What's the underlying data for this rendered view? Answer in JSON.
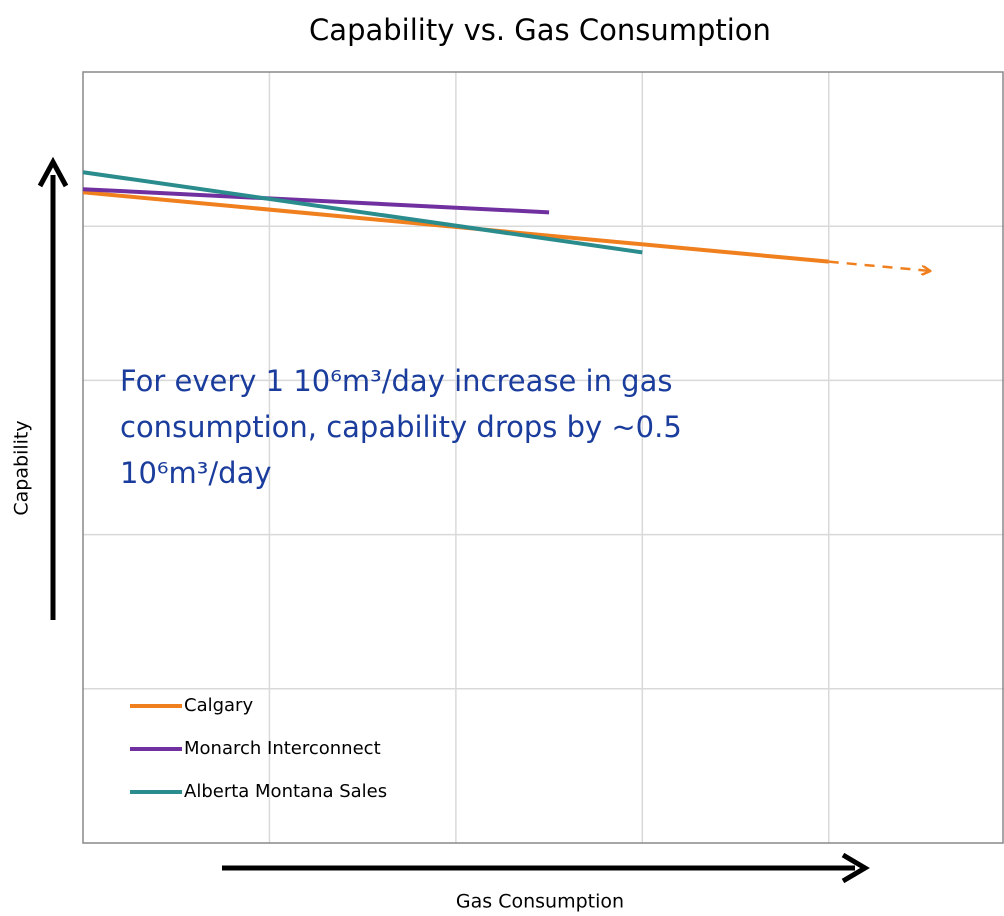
{
  "chart_data": {
    "type": "line",
    "title": "Capability vs. Gas Consumption",
    "x_label": "Gas Consumption",
    "y_label": "Capability",
    "annotation": "For every 1 10⁶m³/day increase in gas consumption, capability drops by ~0.5 10⁶m³/day",
    "annotation_color": "#1a3c9c",
    "xlim": [
      0,
      4.94
    ],
    "ylim": [
      0,
      5
    ],
    "xticks": [
      1,
      2,
      3,
      4
    ],
    "yticks": [
      1,
      2,
      3,
      4
    ],
    "grid": true,
    "legend": "lower left",
    "series": [
      {
        "name": "Calgary",
        "color": "#f07f1e",
        "x": [
          0,
          4
        ],
        "values": [
          4.22,
          3.77
        ],
        "projection": {
          "x": [
            4,
            4.54
          ],
          "values": [
            3.77,
            3.71
          ]
        }
      },
      {
        "name": "Monarch Interconnect",
        "color": "#7030a0",
        "x": [
          0,
          2.5
        ],
        "values": [
          4.24,
          4.09
        ]
      },
      {
        "name": "Alberta Montana Sales",
        "color": "#2a8c8c",
        "x": [
          0,
          3
        ],
        "values": [
          4.35,
          3.83
        ]
      }
    ]
  }
}
